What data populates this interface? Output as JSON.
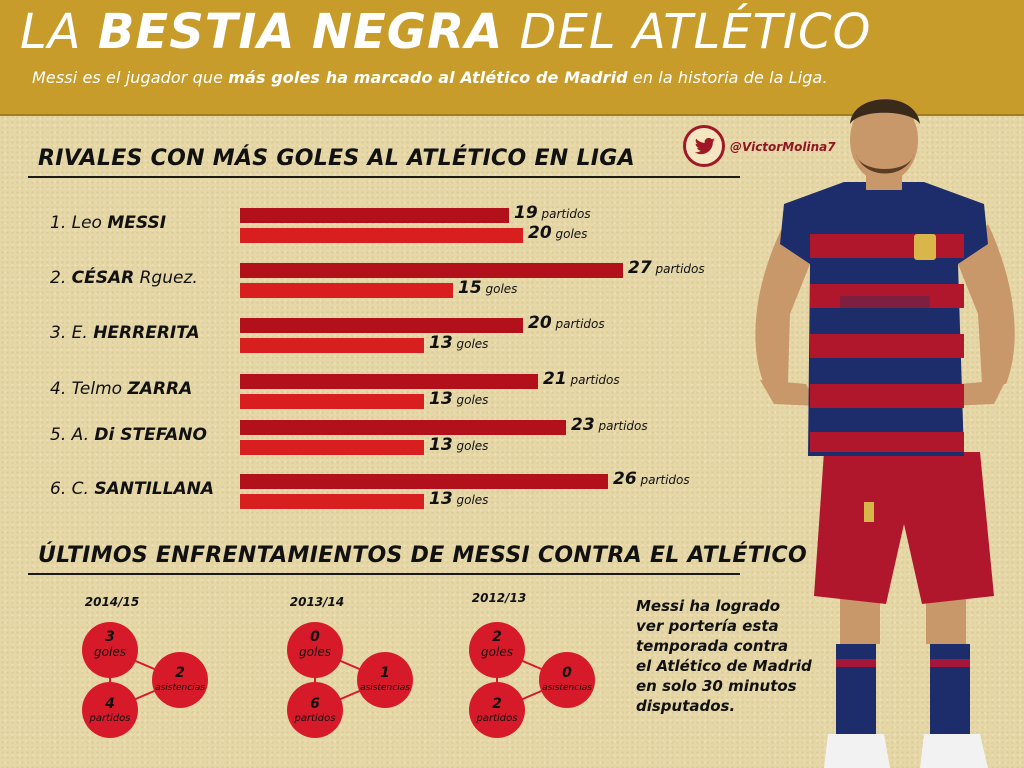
{
  "header": {
    "title_words": [
      "LA",
      "BESTIA",
      "NEGRA",
      "DEL",
      "ATLÉTICO"
    ],
    "subtitle_pre": "Messi es el jugador que ",
    "subtitle_bold": "más goles ha marcado al Atlético de Madrid",
    "subtitle_post": " en la historia de la Liga."
  },
  "credit": {
    "handle": "@VictorMolina7",
    "icon": "twitter-bird-icon"
  },
  "section1": {
    "title": "RIVALES CON MÁS GOLES AL ATLÉTICO EN LIGA"
  },
  "section2": {
    "title": "ÚLTIMOS ENFRENTAMIENTOS DE MESSI CONTRA EL ATLÉTICO"
  },
  "chart_data": {
    "type": "bar",
    "orientation": "horizontal",
    "categories": [
      "1. Leo MESSI",
      "2. CÉSAR Rguez.",
      "3. E. HERRERITA",
      "4. Telmo ZARRA",
      "5. A. Di STEFANO",
      "6. C. SANTILLANA"
    ],
    "labels": [
      {
        "num": "1.",
        "first": "Leo",
        "last": "MESSI"
      },
      {
        "num": "2.",
        "first": "",
        "last": "CÉSAR",
        "after": "Rguez."
      },
      {
        "num": "3.",
        "first": "E.",
        "last": "HERRERITA"
      },
      {
        "num": "4.",
        "first": "Telmo",
        "last": "ZARRA"
      },
      {
        "num": "5.",
        "first": "A.",
        "last": "Di STEFANO"
      },
      {
        "num": "6.",
        "first": "C.",
        "last": "SANTILLANA"
      }
    ],
    "series": [
      {
        "name": "partidos",
        "values": [
          19,
          27,
          20,
          21,
          23,
          26
        ],
        "color": "#b2111b"
      },
      {
        "name": "goles",
        "values": [
          20,
          15,
          13,
          13,
          13,
          13
        ],
        "color": "#d81e1e"
      }
    ],
    "ylim": [
      0,
      30
    ],
    "grid": false,
    "legend": "none"
  },
  "seasons": [
    {
      "season": "2014/15",
      "goles": "3",
      "asistencias": "2",
      "partidos": "4"
    },
    {
      "season": "2013/14",
      "goles": "0",
      "asistencias": "1",
      "partidos": "6"
    },
    {
      "season": "2012/13",
      "goles": "2",
      "asistencias": "0",
      "partidos": "2"
    }
  ],
  "season_labels": {
    "goles": "goles",
    "asistencias": "asistencias",
    "partidos": "partidos"
  },
  "note_lines": [
    "Messi ha logrado",
    "ver portería esta",
    "temporada contra",
    "el Atlético de Madrid",
    "en solo 30 minutos",
    "disputados."
  ],
  "colors": {
    "header_bg": "#c89c2b",
    "bar_dark": "#b2111b",
    "bar_light": "#d81e1e",
    "circle": "#d61a2a",
    "paper": "#e6d7a7"
  }
}
